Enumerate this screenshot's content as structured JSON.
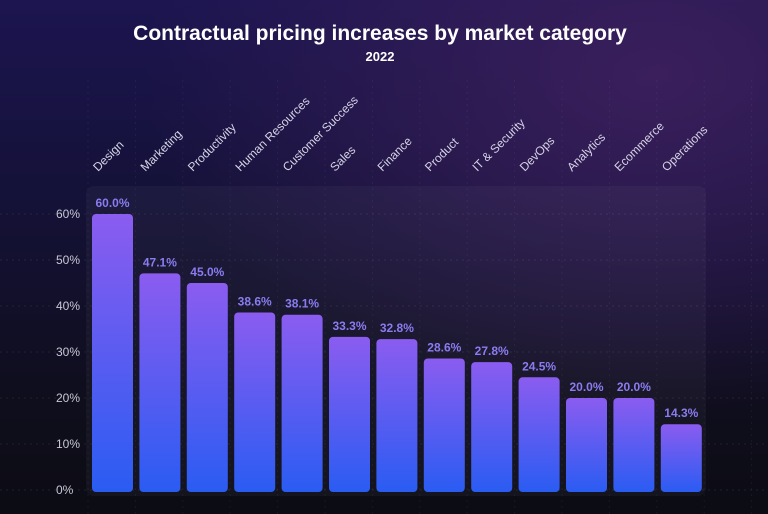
{
  "chart_data": {
    "type": "bar",
    "title": "Contractual pricing increases by market category",
    "subtitle": "2022",
    "xlabel": "",
    "ylabel": "",
    "categories": [
      "Design",
      "Marketing",
      "Productivity",
      "Human Resources",
      "Customer Success",
      "Sales",
      "Finance",
      "Product",
      "IT & Security",
      "DevOps",
      "Analytics",
      "Ecommerce",
      "Operations"
    ],
    "values": [
      60.0,
      47.1,
      45.0,
      38.6,
      38.1,
      33.3,
      32.8,
      28.6,
      27.8,
      24.5,
      20.0,
      20.0,
      14.3
    ],
    "data_labels": [
      "60.0%",
      "47.1%",
      "45.0%",
      "38.6%",
      "38.1%",
      "33.3%",
      "32.8%",
      "28.6%",
      "27.8%",
      "24.5%",
      "20.0%",
      "20.0%",
      "14.3%"
    ],
    "yticks": [
      0,
      10,
      20,
      30,
      40,
      50,
      60
    ],
    "ytick_labels": [
      "0%",
      "10%",
      "20%",
      "30%",
      "40%",
      "50%",
      "60%"
    ],
    "ylim": [
      0,
      60
    ],
    "grid": true,
    "legend": "none",
    "colors": {
      "bar_top": "#8b5cf0",
      "bar_bottom": "#2a5cf2",
      "value_label": "#8a7cf0"
    }
  }
}
